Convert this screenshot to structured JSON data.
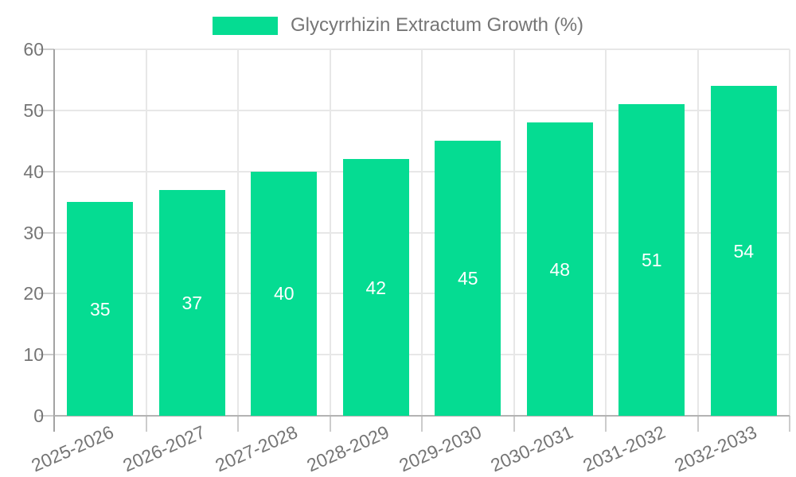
{
  "legend": {
    "label": "Glycyrrhizin Extractum Growth (%)"
  },
  "colors": {
    "bar": "#05DC92",
    "axis_text": "#757575",
    "legend_text": "#757575",
    "grid": "#e7e7e7",
    "y_axis_line": "#a3a3a3",
    "x_axis_line": "#b3b3b3",
    "tick": "#cccccc",
    "value_label": "#ffffff",
    "background": "#ffffff"
  },
  "chart_data": {
    "type": "bar",
    "title": "Glycyrrhizin Extractum Growth (%)",
    "categories": [
      "2025-2026",
      "2026-2027",
      "2027-2028",
      "2028-2029",
      "2029-2030",
      "2030-2031",
      "2031-2032",
      "2032-2033"
    ],
    "values": [
      35,
      37,
      40,
      42,
      45,
      48,
      51,
      54
    ],
    "value_labels": [
      "35",
      "37",
      "40",
      "42",
      "45",
      "48",
      "51",
      "54"
    ],
    "yticks": [
      "0",
      "10",
      "20",
      "30",
      "40",
      "50",
      "60"
    ],
    "ylim": [
      0,
      60
    ],
    "ytick_step": 10,
    "xlabel": "",
    "ylabel": "",
    "grid": true,
    "legend_position": "top-center",
    "x_label_rotation_deg": -24,
    "bar_labels_inside": true
  }
}
